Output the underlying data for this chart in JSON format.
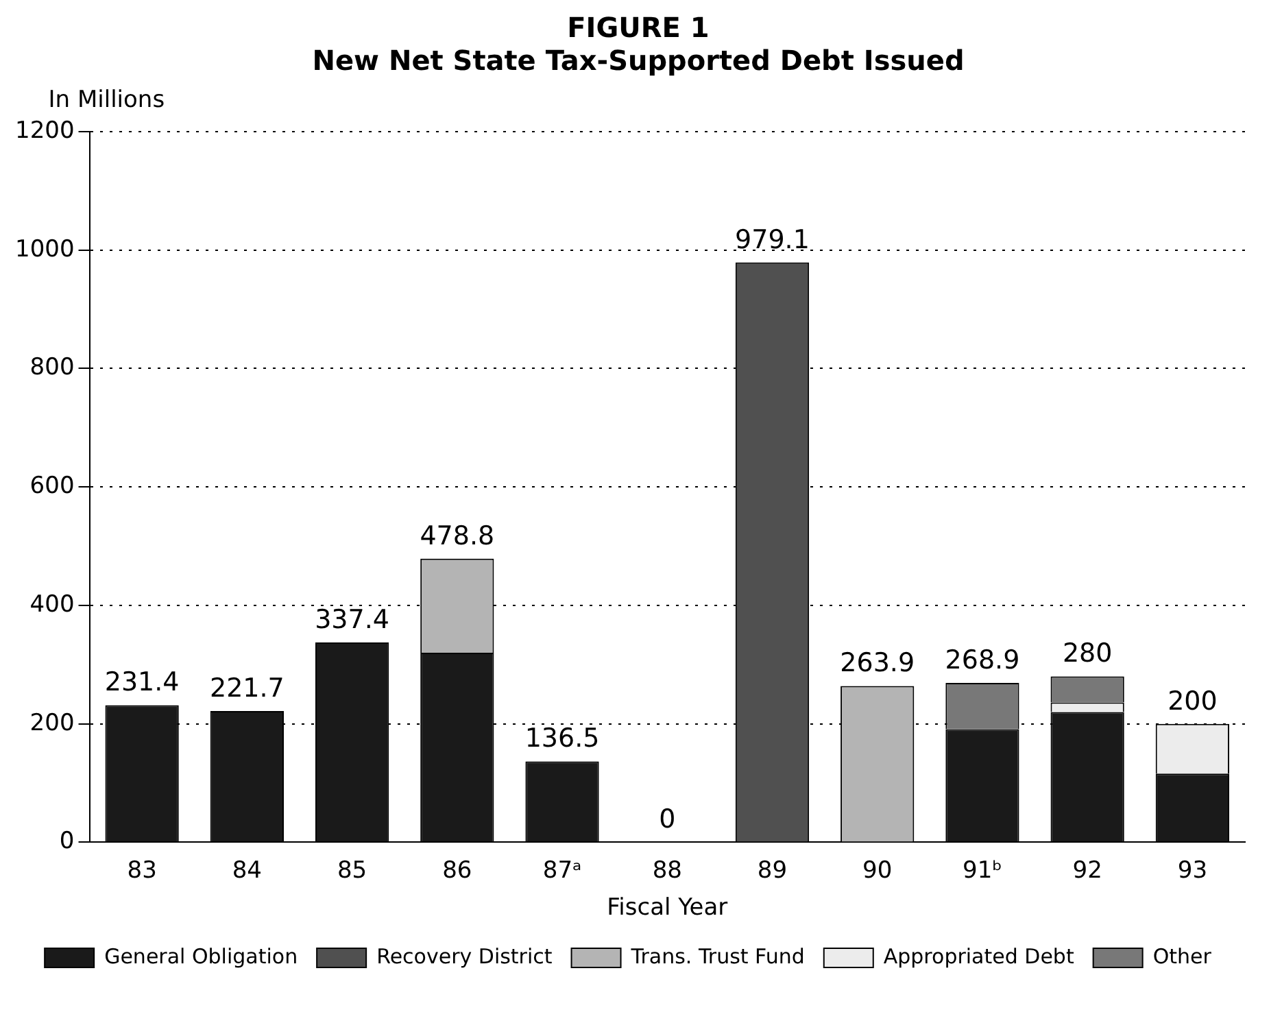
{
  "chart_data": {
    "type": "bar",
    "title": "FIGURE 1",
    "subtitle": "New Net State Tax-Supported Debt Issued",
    "xlabel": "Fiscal Year",
    "ylabel": "In Millions",
    "categories": [
      "83",
      "84",
      "85",
      "86",
      "87ᵃ",
      "88",
      "89",
      "90",
      "91ᵇ",
      "92",
      "93"
    ],
    "series": [
      {
        "name": "General Obligation",
        "color": "#1a1a1a",
        "values": [
          231.4,
          221.7,
          337.4,
          320,
          136.5,
          0,
          0,
          0,
          191,
          220,
          116
        ]
      },
      {
        "name": "Recovery District",
        "color": "#505050",
        "values": [
          0,
          0,
          0,
          0,
          0,
          0,
          979.1,
          0,
          0,
          0,
          0
        ]
      },
      {
        "name": "Trans. Trust Fund",
        "color": "#b4b4b4",
        "values": [
          0,
          0,
          0,
          159,
          0,
          0,
          0,
          263.9,
          0,
          0,
          0
        ]
      },
      {
        "name": "Appropriated Debt",
        "color": "#ececec",
        "values": [
          0,
          0,
          0,
          0,
          0,
          0,
          0,
          0,
          0,
          16,
          84
        ]
      },
      {
        "name": "Other",
        "color": "#787878",
        "values": [
          0,
          0,
          0,
          0,
          0,
          0,
          0,
          0,
          78,
          44,
          0
        ]
      }
    ],
    "stacked": true,
    "totals": [
      "231.4",
      "221.7",
      "337.4",
      "478.8",
      "136.5",
      "0",
      "979.1",
      "263.9",
      "268.9",
      "280",
      "200"
    ],
    "ylim": [
      0,
      1200
    ],
    "yticks": [
      0,
      200,
      400,
      600,
      800,
      1000,
      1200
    ],
    "grid": "y",
    "line_style": "dotted",
    "legend": "bottom"
  }
}
